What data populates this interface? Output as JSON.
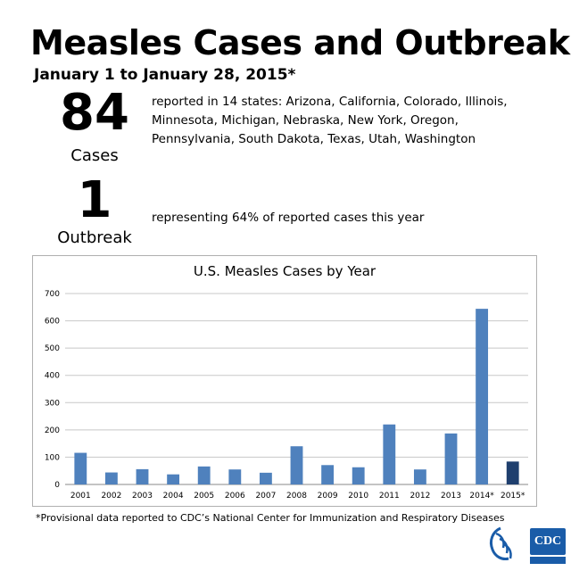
{
  "header": {
    "title": "Measles Cases and Outbreaks",
    "subtitle": "January 1 to January 28, 2015*"
  },
  "stats": {
    "cases": {
      "number": "84",
      "label": "Cases",
      "text": "reported in 14 states: Arizona, California, Colorado, Illinois, Minnesota, Michigan, Nebraska, New York, Oregon, Pennsylvania, South Dakota, Texas, Utah, Washington"
    },
    "outbreak": {
      "number": "1",
      "label": "Outbreak",
      "text": "representing 64% of reported cases this year"
    }
  },
  "chart_data": {
    "type": "bar",
    "title": "U.S. Measles Cases by Year",
    "xlabel": "",
    "ylabel": "",
    "ylim": [
      0,
      700
    ],
    "yticks": [
      0,
      100,
      200,
      300,
      400,
      500,
      600,
      700
    ],
    "grid": true,
    "categories": [
      "2001",
      "2002",
      "2003",
      "2004",
      "2005",
      "2006",
      "2007",
      "2008",
      "2009",
      "2010",
      "2011",
      "2012",
      "2013",
      "2014*",
      "2015*"
    ],
    "values": [
      116,
      44,
      56,
      37,
      66,
      55,
      43,
      140,
      71,
      63,
      220,
      55,
      187,
      644,
      84
    ],
    "colors": [
      "#4f81bd",
      "#4f81bd",
      "#4f81bd",
      "#4f81bd",
      "#4f81bd",
      "#4f81bd",
      "#4f81bd",
      "#4f81bd",
      "#4f81bd",
      "#4f81bd",
      "#4f81bd",
      "#4f81bd",
      "#4f81bd",
      "#4f81bd",
      "#1f3f6e"
    ]
  },
  "footnote": "*Provisional data reported to CDC’s National Center for Immunization and Respiratory Diseases",
  "logos": {
    "cdc": "CDC"
  }
}
